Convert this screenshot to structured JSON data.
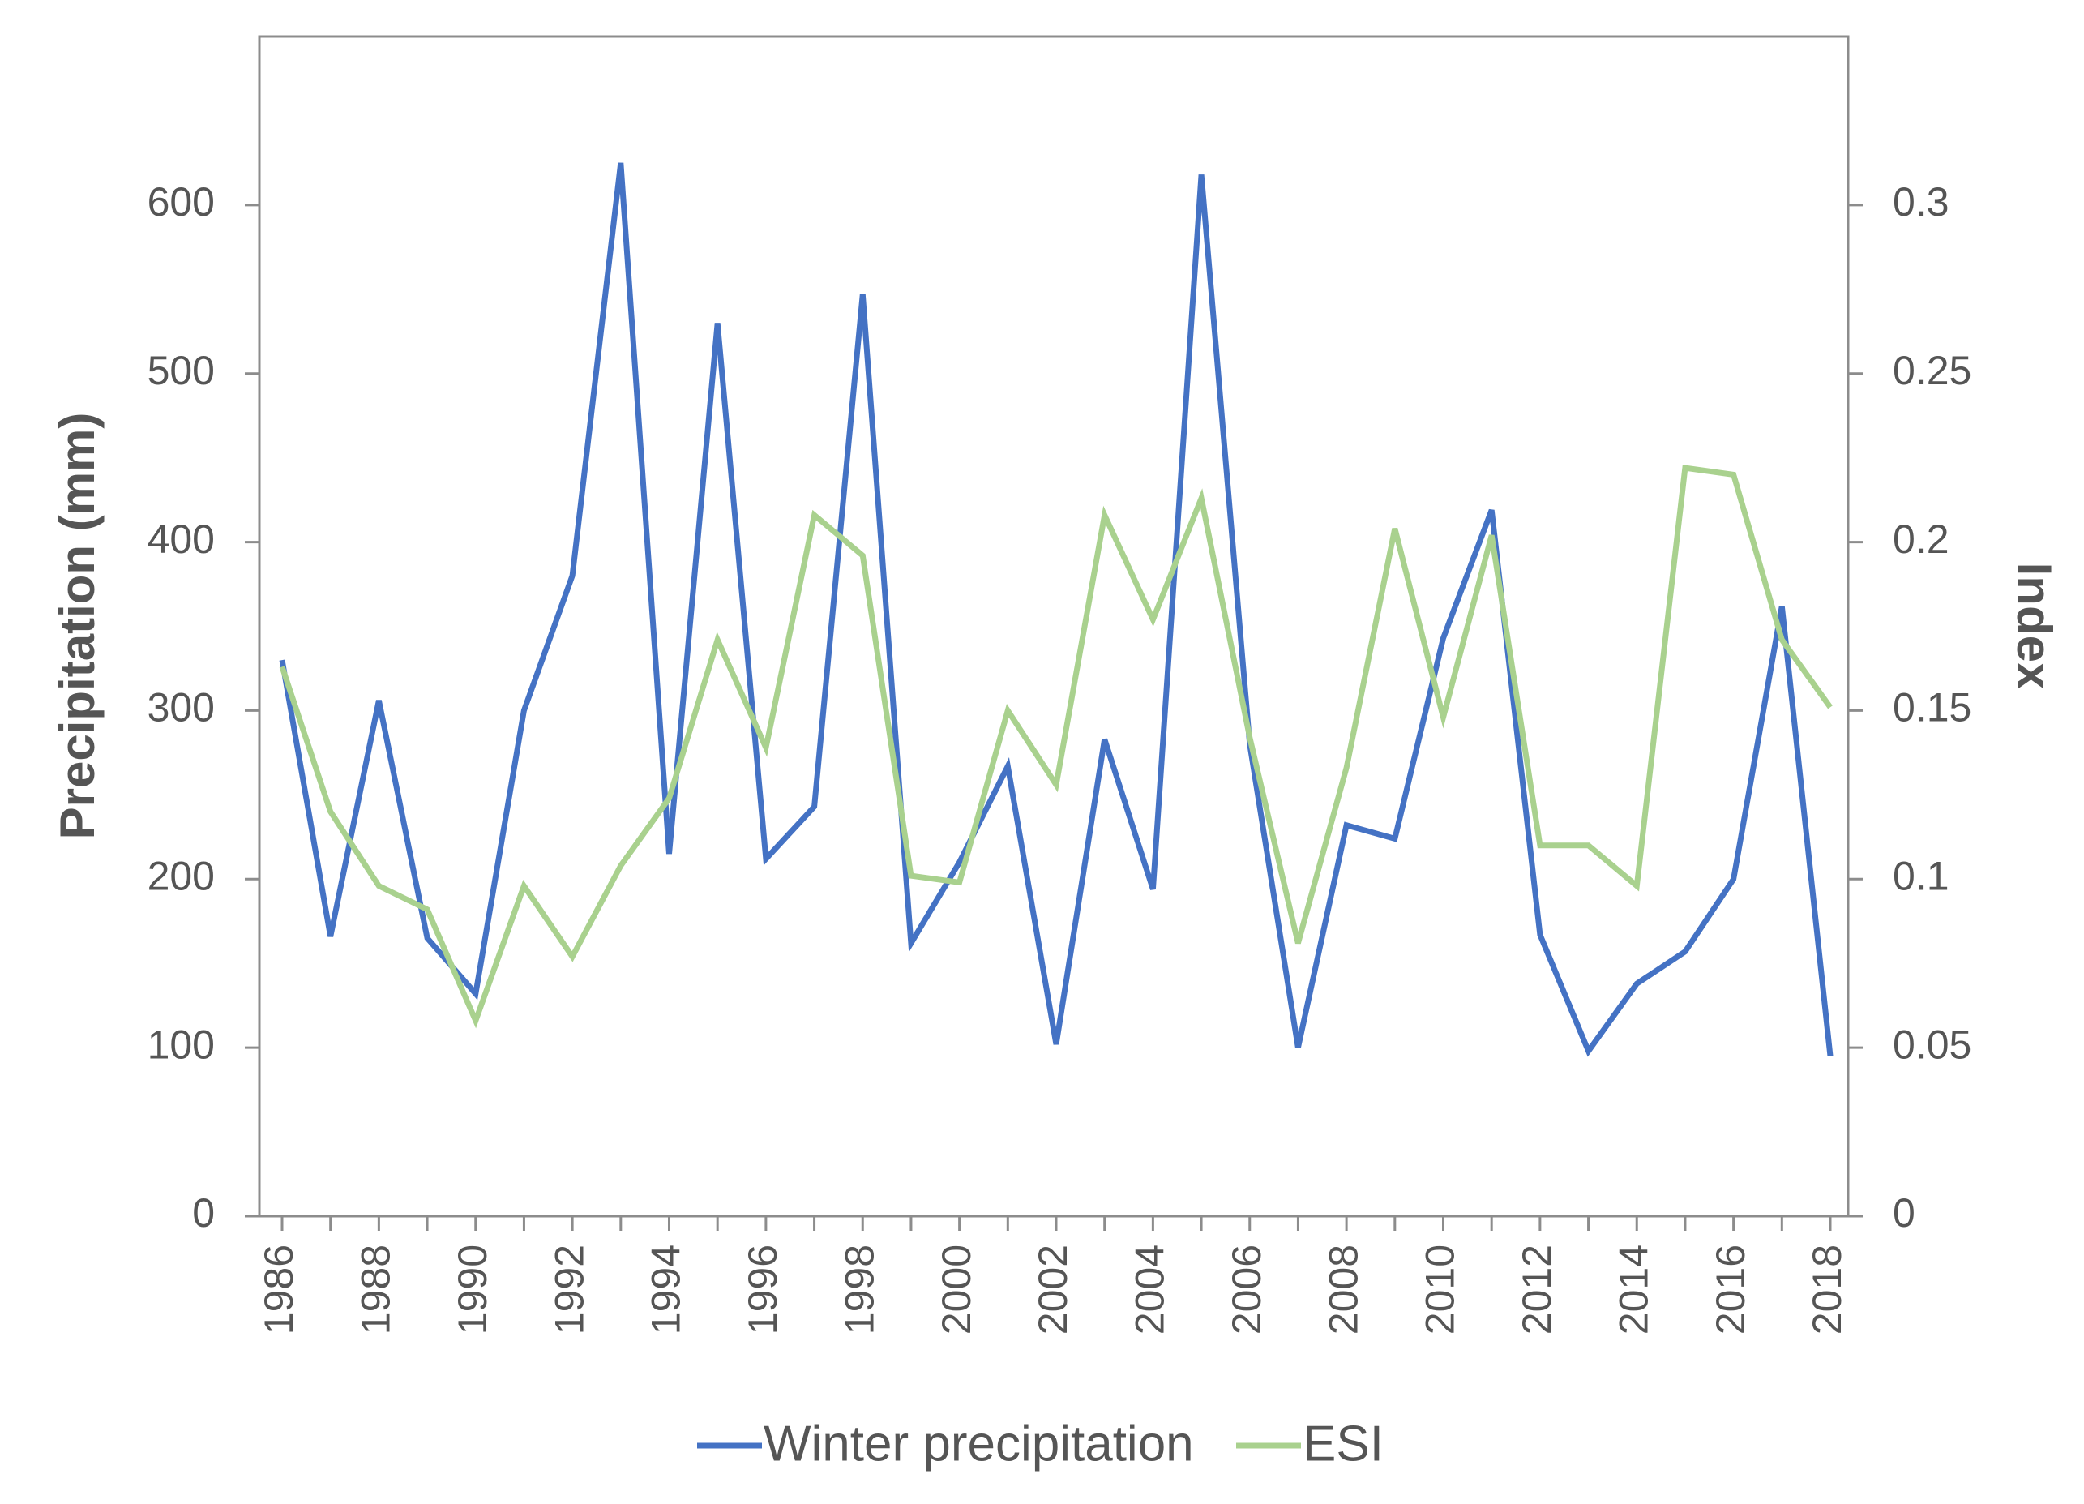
{
  "chart_data": {
    "type": "line",
    "title": "",
    "xlabel": "",
    "ylabel": "Precipitation (mm)",
    "y2label": "Index",
    "ylim": [
      0,
      700
    ],
    "y2lim": [
      0,
      0.35
    ],
    "yticks": [
      "0",
      "100",
      "200",
      "300",
      "400",
      "500",
      "600"
    ],
    "y2ticks": [
      "0",
      "0.05",
      "0.1",
      "0.15",
      "0.2",
      "0.25",
      "0.3"
    ],
    "xticks": [
      "1986",
      "1988",
      "1990",
      "1992",
      "1994",
      "1996",
      "1998",
      "2000",
      "2002",
      "2004",
      "2006",
      "2008",
      "2010",
      "2012",
      "2014",
      "2016",
      "2018"
    ],
    "x": [
      1986,
      1987,
      1988,
      1989,
      1990,
      1991,
      1992,
      1993,
      1994,
      1995,
      1996,
      1997,
      1998,
      1999,
      2000,
      2001,
      2002,
      2003,
      2004,
      2005,
      2006,
      2007,
      2008,
      2009,
      2010,
      2011,
      2012,
      2013,
      2014,
      2015,
      2016,
      2017,
      2018
    ],
    "grid": false,
    "legend_position": "bottom",
    "series": [
      {
        "name": "Winter precipitation",
        "axis": "left",
        "color": "#4472c4",
        "values": [
          330,
          166,
          306,
          165,
          132,
          300,
          380,
          625,
          215,
          530,
          212,
          243,
          547,
          162,
          210,
          267,
          102,
          283,
          194,
          618,
          280,
          100,
          232,
          224,
          343,
          419,
          167,
          98,
          138,
          157,
          200,
          362,
          95
        ]
      },
      {
        "name": "ESI",
        "axis": "right",
        "color": "#a9d18e",
        "values": [
          0.163,
          0.12,
          0.098,
          0.091,
          0.058,
          0.098,
          0.077,
          0.104,
          0.124,
          0.171,
          0.139,
          0.208,
          0.196,
          0.101,
          0.099,
          0.15,
          0.128,
          0.208,
          0.177,
          0.213,
          0.142,
          0.081,
          0.133,
          0.204,
          0.148,
          0.202,
          0.11,
          0.11,
          0.098,
          0.222,
          0.22,
          0.171,
          0.151
        ]
      }
    ]
  }
}
